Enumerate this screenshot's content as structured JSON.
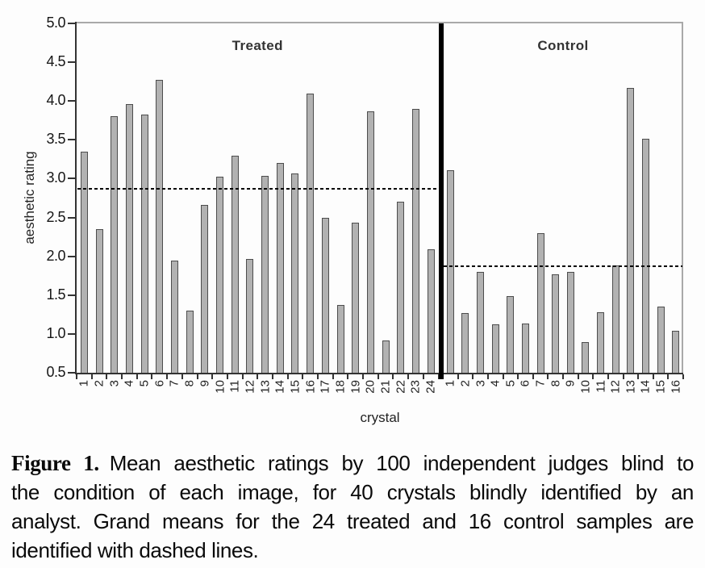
{
  "figure": {
    "caption_label": "Figure 1.",
    "caption_lines": [
      "Mean aesthetic ratings by 100 independent judges blind to",
      "the condition of each image, for 40 crystals blindly identified by an",
      "analyst. Grand means for the 24 treated and 16 control samples are",
      "identified with dashed lines."
    ]
  },
  "chart_data": {
    "type": "bar",
    "title": "",
    "xlabel": "crystal",
    "ylabel": "aesthetic rating",
    "ylim": [
      0.5,
      5.0
    ],
    "ytick_step": 0.5,
    "yticks": [
      "0.5",
      "1.0",
      "1.5",
      "2.0",
      "2.5",
      "3.0",
      "3.5",
      "4.0",
      "4.5",
      "5.0"
    ],
    "grid": false,
    "legend": "none",
    "bar_color": "#b2b2b2",
    "bar_border_color": "#4d4d4d",
    "mean_line_color": "#000000",
    "mean_line_style": "dashed",
    "groups": [
      {
        "label": "Treated",
        "grand_mean": 2.87,
        "categories": [
          "1",
          "2",
          "3",
          "4",
          "5",
          "6",
          "7",
          "8",
          "9",
          "10",
          "11",
          "12",
          "13",
          "14",
          "15",
          "16",
          "17",
          "18",
          "19",
          "20",
          "21",
          "22",
          "23",
          "24"
        ],
        "values": [
          3.35,
          2.35,
          3.8,
          3.96,
          3.83,
          4.27,
          1.94,
          1.3,
          2.66,
          3.03,
          3.3,
          1.97,
          3.04,
          3.2,
          3.07,
          4.1,
          2.5,
          1.37,
          2.43,
          3.87,
          0.92,
          2.7,
          3.9,
          2.09
        ]
      },
      {
        "label": "Control",
        "grand_mean": 1.87,
        "categories": [
          "1",
          "2",
          "3",
          "4",
          "5",
          "6",
          "7",
          "8",
          "9",
          "10",
          "11",
          "12",
          "13",
          "14",
          "15",
          "16"
        ],
        "values": [
          3.11,
          1.27,
          1.8,
          1.12,
          1.49,
          1.13,
          2.3,
          1.77,
          1.8,
          0.9,
          1.28,
          1.88,
          4.17,
          3.51,
          1.35,
          1.04
        ]
      }
    ]
  }
}
